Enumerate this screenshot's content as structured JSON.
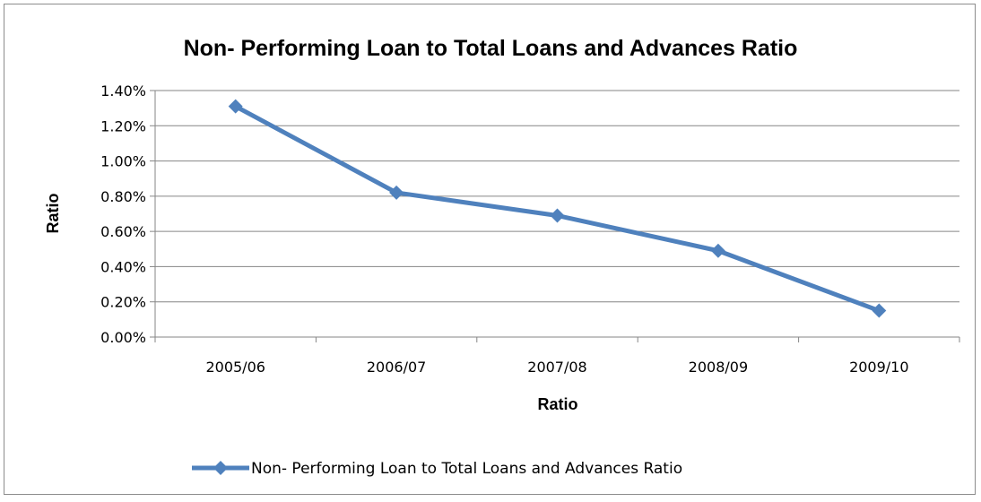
{
  "chart_data": {
    "type": "line",
    "title": "Non- Performing Loan to Total Loans and Advances Ratio",
    "xlabel": "Ratio",
    "ylabel": "Ratio",
    "categories": [
      "2005/06",
      "2006/07",
      "2007/08",
      "2008/09",
      "2009/10"
    ],
    "series": [
      {
        "name": "Non- Performing Loan to Total Loans and Advances Ratio",
        "values": [
          1.31,
          0.82,
          0.69,
          0.49,
          0.15
        ]
      }
    ],
    "ylim": [
      0,
      1.4
    ],
    "yticks": [
      "0.00%",
      "0.20%",
      "0.40%",
      "0.60%",
      "0.80%",
      "1.00%",
      "1.20%",
      "1.40%"
    ],
    "grid": true,
    "legend": "bottom",
    "colors": {
      "series": "#4f81bd",
      "grid": "#868686",
      "axis": "#868686"
    }
  }
}
